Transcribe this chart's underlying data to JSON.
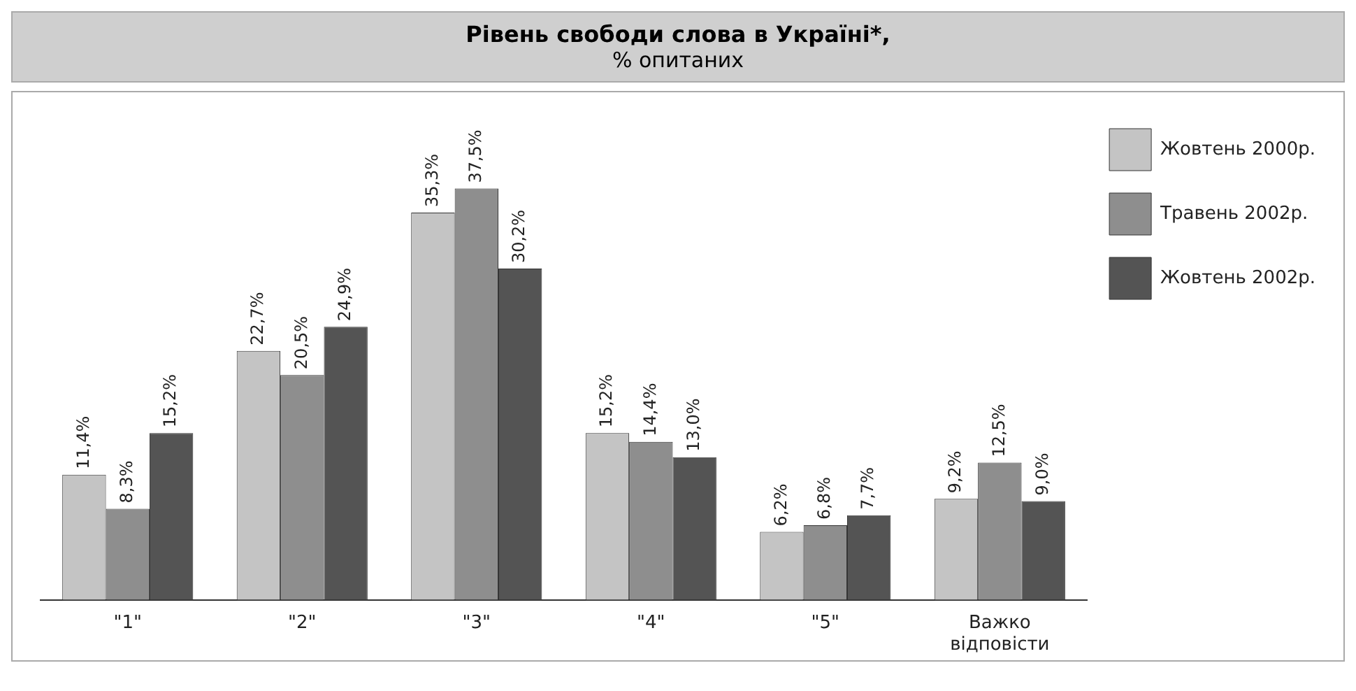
{
  "chart_data": {
    "type": "bar",
    "title": "Рівень свободи слова в Україні*,",
    "subtitle": "% опитаних",
    "categories": [
      "\"1\"",
      "\"2\"",
      "\"3\"",
      "\"4\"",
      "\"5\"",
      "Важко відповісти"
    ],
    "legend": "top right",
    "tick_labels": "x",
    "series": [
      {
        "name": "Жовтень 2000р.",
        "color": "#c4c4c4",
        "values": [
          11.4,
          22.7,
          35.3,
          15.2,
          6.2,
          9.2
        ],
        "value_labels": [
          "11,4%",
          "22,7%",
          "35,3%",
          "15,2%",
          "6,2%",
          "9,2%"
        ]
      },
      {
        "name": "Травень 2002р.",
        "color": "#8e8e8e",
        "values": [
          8.3,
          20.5,
          37.5,
          14.4,
          6.8,
          12.5
        ],
        "value_labels": [
          "8,3%",
          "20,5%",
          "37,5%",
          "14,4%",
          "6,8%",
          "12,5%"
        ]
      },
      {
        "name": "Жовтень 2002р.",
        "color": "#545454",
        "values": [
          15.2,
          24.9,
          30.2,
          13.0,
          7.7,
          9.0
        ],
        "value_labels": [
          "15,2%",
          "24,9%",
          "30,2%",
          "13,0%",
          "7,7%",
          "9,0%"
        ]
      }
    ]
  }
}
